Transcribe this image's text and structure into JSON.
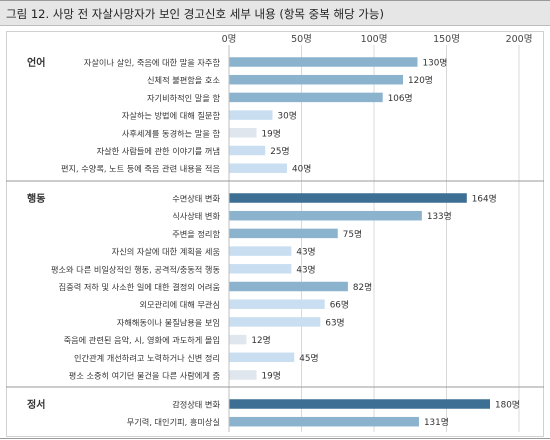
{
  "title": "그림 12. 사망 전 자살사망자가 보인 경고신호 세부 내용 (항목 중복 해당 가능)",
  "unit_suffix": "명",
  "colors": {
    "dark": "#3d6e93",
    "mid": "#8bb3cd",
    "light": "#c9dff1",
    "pale": "#dfe6ee",
    "grid": "#bfbfbf",
    "separator": "#9a9a9a"
  },
  "chart_data": {
    "type": "bar",
    "orientation": "horizontal",
    "title": "그림 12. 사망 전 자살사망자가 보인 경고신호 세부 내용 (항목 중복 해당 가능)",
    "xlim": [
      0,
      200
    ],
    "ticks": [
      {
        "value": 0,
        "label": "0명"
      },
      {
        "value": 50,
        "label": "50명"
      },
      {
        "value": 100,
        "label": "100명"
      },
      {
        "value": 150,
        "label": "150명"
      },
      {
        "value": 200,
        "label": "200명"
      }
    ],
    "grid": "vertical",
    "groups": [
      {
        "name": "언어",
        "items": [
          {
            "label": "자살이나 살인, 죽음에 대한 말을 자주함",
            "value": 130,
            "color": "mid"
          },
          {
            "label": "신체적 불편함을 호소",
            "value": 120,
            "color": "mid"
          },
          {
            "label": "자기비하적인 말을 함",
            "value": 106,
            "color": "mid"
          },
          {
            "label": "자살하는 방법에 대해 질문함",
            "value": 30,
            "color": "light"
          },
          {
            "label": "사후세계를 동경하는 말을 함",
            "value": 19,
            "color": "pale"
          },
          {
            "label": "자살한 사람들에 관한 이야기를 꺼냄",
            "value": 25,
            "color": "light"
          },
          {
            "label": "편지, 수양록, 노트 등에 죽음 관련 내용을 적음",
            "value": 40,
            "color": "light"
          }
        ]
      },
      {
        "name": "행동",
        "items": [
          {
            "label": "수면상태 변화",
            "value": 164,
            "color": "dark"
          },
          {
            "label": "식사상태 변화",
            "value": 133,
            "color": "mid"
          },
          {
            "label": "주변을 정리함",
            "value": 75,
            "color": "mid"
          },
          {
            "label": "자신의 자살에 대한 계획을 세움",
            "value": 43,
            "color": "light"
          },
          {
            "label": "평소와 다른 비일상적인 행동, 공격적/충동적 행동",
            "value": 43,
            "color": "light"
          },
          {
            "label": "집중력 저하 및 사소한 일에 대한 결정의 어려움",
            "value": 82,
            "color": "mid"
          },
          {
            "label": "외모관리에 대해 무관심",
            "value": 66,
            "color": "light"
          },
          {
            "label": "자해해동이나 물질남용을 보임",
            "value": 63,
            "color": "light"
          },
          {
            "label": "죽음에 관련된 음악, 시, 영화에 과도하게 몰입",
            "value": 12,
            "color": "pale"
          },
          {
            "label": "인간관계 개선하려고 노력하거나 신변 정리",
            "value": 45,
            "color": "light"
          },
          {
            "label": "평소 소중히 여기던 물건을 다른 사람에게 줌",
            "value": 19,
            "color": "pale"
          }
        ]
      },
      {
        "name": "정서",
        "items": [
          {
            "label": "감정상태 변화",
            "value": 180,
            "color": "dark"
          },
          {
            "label": "무기력, 대인기피, 흥미상실",
            "value": 131,
            "color": "mid"
          }
        ]
      }
    ]
  }
}
